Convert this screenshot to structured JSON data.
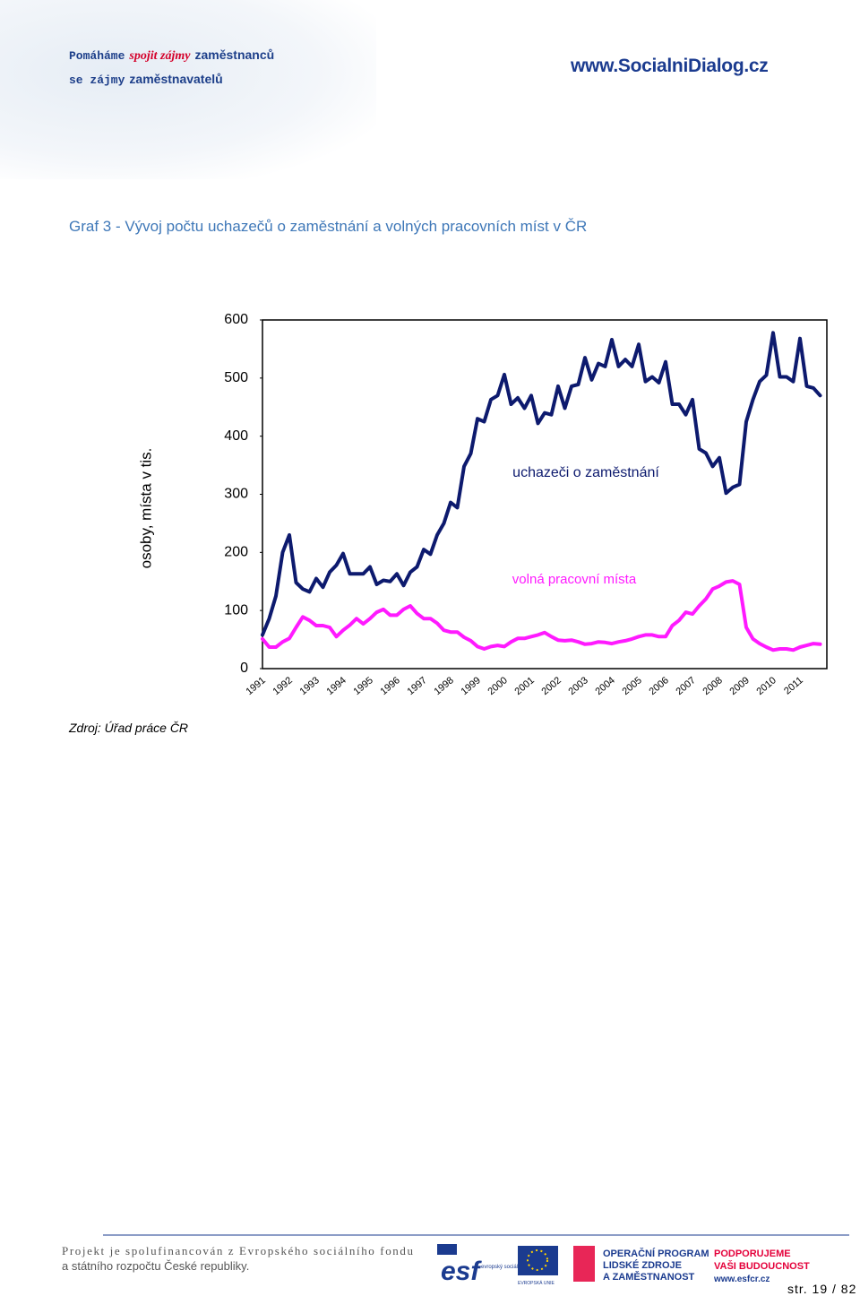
{
  "header": {
    "tagline": [
      "Pomáháme",
      "spojit zájmy",
      "zaměstnanců"
    ],
    "tagline2": [
      "se zájmy",
      "zaměstnavatelů"
    ],
    "website": "www.SocialniDialog.cz"
  },
  "chart_data": {
    "type": "line",
    "title": "Graf 3 - Vývoj počtu uchazečů o zaměstnání a volných pracovních míst v ČR",
    "y_label": "osoby, místa v tis.",
    "categories": [
      "1991",
      null,
      null,
      null,
      "1992",
      null,
      null,
      null,
      "1993",
      null,
      null,
      null,
      "1994",
      null,
      null,
      null,
      "1995",
      null,
      null,
      null,
      "1996",
      null,
      null,
      null,
      "1997",
      null,
      null,
      null,
      "1998",
      null,
      null,
      null,
      "1999",
      null,
      null,
      null,
      "2000",
      null,
      null,
      null,
      "2001",
      null,
      null,
      null,
      "2002",
      null,
      null,
      null,
      "2003",
      null,
      null,
      null,
      "2004",
      null,
      null,
      null,
      "2005",
      null,
      null,
      null,
      "2006",
      null,
      null,
      null,
      "2007",
      null,
      null,
      null,
      "2008",
      null,
      null,
      null,
      "2009",
      null,
      null,
      null,
      "2010",
      null,
      null,
      null,
      "2011",
      null,
      null,
      null
    ],
    "series": [
      {
        "name": "uchazeči o zaměstnání",
        "color": "#0d1a6e",
        "values": [
          58,
          86,
          125,
          200,
          230,
          148,
          137,
          132,
          155,
          140,
          166,
          178,
          198,
          163,
          163,
          163,
          175,
          145,
          152,
          150,
          163,
          143,
          166,
          175,
          205,
          197,
          230,
          250,
          286,
          277,
          348,
          370,
          430,
          425,
          463,
          470,
          506,
          455,
          466,
          448,
          470,
          422,
          440,
          437,
          486,
          448,
          486,
          489,
          535,
          497,
          525,
          520,
          566,
          520,
          532,
          520,
          558,
          494,
          502,
          492,
          528,
          455,
          455,
          437,
          463,
          378,
          371,
          348,
          363,
          302,
          312,
          317,
          425,
          463,
          494,
          505,
          578,
          502,
          502,
          494,
          568,
          486,
          483,
          470
        ]
      },
      {
        "name": "volná pracovní místa",
        "color": "#ff1aff",
        "values": [
          51,
          37,
          37,
          46,
          52,
          71,
          89,
          83,
          74,
          74,
          71,
          55,
          66,
          75,
          86,
          77,
          86,
          97,
          102,
          92,
          92,
          102,
          108,
          95,
          86,
          86,
          78,
          66,
          63,
          63,
          54,
          48,
          38,
          34,
          38,
          40,
          38,
          46,
          52,
          52,
          55,
          58,
          62,
          55,
          49,
          48,
          49,
          46,
          42,
          43,
          46,
          45,
          43,
          46,
          48,
          51,
          55,
          58,
          58,
          55,
          55,
          74,
          83,
          97,
          94,
          108,
          120,
          137,
          142,
          149,
          151,
          145,
          71,
          51,
          43,
          37,
          32,
          34,
          34,
          32,
          37,
          40,
          43,
          42
        ]
      }
    ],
    "ylim": [
      0,
      600
    ],
    "yticks": [
      0,
      100,
      200,
      300,
      400,
      500,
      600
    ],
    "grid": false
  },
  "source": "Zdroj: Úřad práce ČR",
  "footer": {
    "line1": "Projekt je spolufinancován z Evropského sociálního fondu",
    "line2": "a státního rozpočtu České republiky.",
    "esf": "esf",
    "esf_text": "evropský sociální fond v ČR",
    "eu_text": "EVROPSKÁ UNIE",
    "op_text": [
      "OPERAČNÍ PROGRAM",
      "LIDSKÉ ZDROJE",
      "A ZAMĚSTNANOST"
    ],
    "support": [
      "PODPORUJEME",
      "VAŠI BUDOUCNOST"
    ],
    "esf_web": "www.esfcr.cz",
    "page": "str. 19 / 82"
  }
}
